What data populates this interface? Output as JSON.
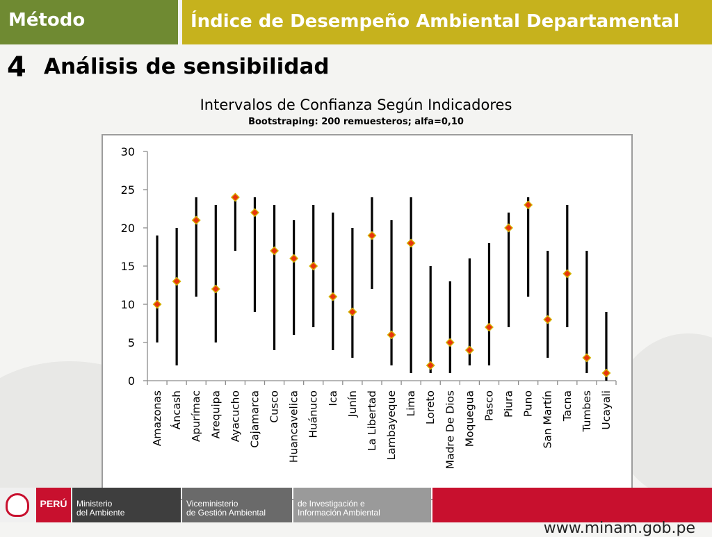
{
  "header": {
    "left_label": "Método",
    "title": "Índice de Desempeño Ambiental Departamental"
  },
  "section": {
    "number": "4",
    "title": "Análisis de sensibilidad"
  },
  "footer": {
    "country": "PERÚ",
    "ministry_line1": "Ministerio",
    "ministry_line2": "del Ambiente",
    "vice_line1": "Viceministerio",
    "vice_line2": "de Gestión Ambiental",
    "dir_line1": "de Investigación e",
    "dir_line2": "Información Ambiental",
    "url": "www.minam.gob.pe"
  },
  "colors": {
    "header_left": "#6f8a32",
    "header_right": "#c6b21d",
    "marker_fill": "#e8340c",
    "marker_border": "#d4b400",
    "bar": "#000000"
  },
  "chart_data": {
    "type": "error-bar",
    "title": "Intervalos de Confianza Según Indicadores",
    "subtitle": "Bootstraping: 200 remuesteros; alfa=0,10",
    "ylim": [
      0,
      30
    ],
    "yticks": [
      0,
      5,
      10,
      15,
      20,
      25,
      30
    ],
    "grid": false,
    "categories": [
      "Amazonas",
      "Áncash",
      "Apurímac",
      "Arequipa",
      "Ayacucho",
      "Cajamarca",
      "Cusco",
      "Huancavelica",
      "Huánuco",
      "Ica",
      "Junín",
      "La Libertad",
      "Lambayeque",
      "Lima",
      "Loreto",
      "Madre De Dios",
      "Moquegua",
      "Pasco",
      "Piura",
      "Puno",
      "San Martín",
      "Tacna",
      "Tumbes",
      "Ucayali"
    ],
    "series": [
      {
        "values": [
          10,
          13,
          21,
          12,
          24,
          22,
          17,
          16,
          15,
          11,
          9,
          19,
          6,
          18,
          2,
          5,
          4,
          7,
          20,
          23,
          8,
          14,
          3,
          1
        ]
      },
      {
        "values": [
          5,
          2,
          11,
          5,
          17,
          9,
          4,
          6,
          7,
          4,
          3,
          12,
          2,
          1,
          1,
          1,
          2,
          2,
          7,
          11,
          3,
          7,
          1,
          0
        ]
      },
      {
        "values": [
          19,
          20,
          24,
          23,
          24,
          24,
          23,
          21,
          23,
          22,
          20,
          24,
          21,
          24,
          15,
          13,
          16,
          18,
          22,
          24,
          17,
          23,
          17,
          9
        ]
      }
    ]
  }
}
